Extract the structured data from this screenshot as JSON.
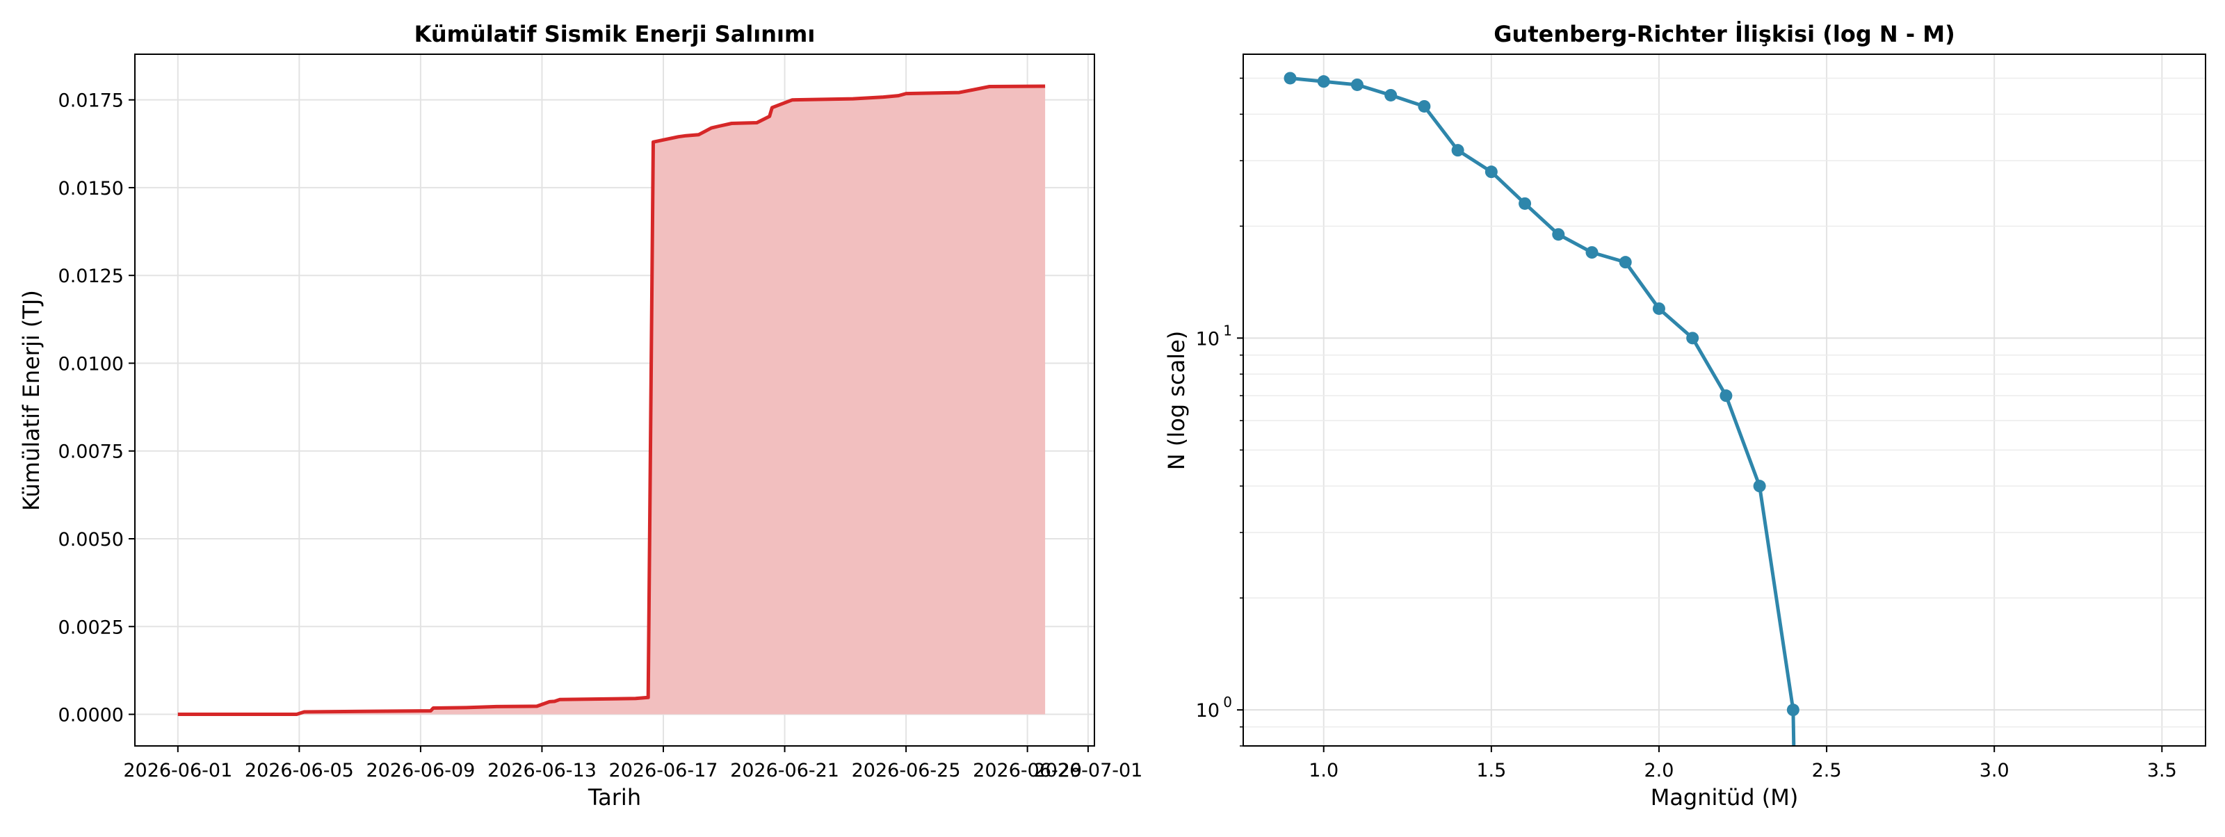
{
  "chart_data": [
    {
      "type": "area",
      "title": "Kümülatif Sismik Enerji Salınımı",
      "xlabel": "Tarih",
      "ylabel": "Kümülatif Enerji (TJ)",
      "x_type": "date",
      "x_ticks": [
        "2026-06-01",
        "2026-06-05",
        "2026-06-09",
        "2026-06-13",
        "2026-06-17",
        "2026-06-21",
        "2026-06-25",
        "2026-06-29",
        "2026-07-01"
      ],
      "xlim": [
        "2026-05-30T14:00",
        "2026-07-01T05:00"
      ],
      "ylim": [
        -0.0009,
        0.0188
      ],
      "y_ticks": [
        "0.0000",
        "0.0025",
        "0.0050",
        "0.0075",
        "0.0100",
        "0.0125",
        "0.0150",
        "0.0175"
      ],
      "grid": true,
      "colors": {
        "line": "#d62728",
        "fill": "#f2bfbf"
      },
      "series": [
        {
          "points": [
            [
              "2026-06-01T00:00",
              0.0
            ],
            [
              "2026-06-04T22:00",
              0.0
            ],
            [
              "2026-06-05T04:00",
              7e-05
            ],
            [
              "2026-06-09T08:00",
              0.0001
            ],
            [
              "2026-06-09T10:00",
              0.00018
            ],
            [
              "2026-06-10T12:00",
              0.00019
            ],
            [
              "2026-06-11T12:00",
              0.00022
            ],
            [
              "2026-06-12T20:00",
              0.00023
            ],
            [
              "2026-06-13T06:00",
              0.00036
            ],
            [
              "2026-06-13T10:00",
              0.00037
            ],
            [
              "2026-06-13T14:00",
              0.00042
            ],
            [
              "2026-06-16T02:00",
              0.00045
            ],
            [
              "2026-06-16T12:00",
              0.00048
            ],
            [
              "2026-06-16T16:00",
              0.0163
            ],
            [
              "2026-06-17T12:00",
              0.01645
            ],
            [
              "2026-06-17T18:00",
              0.01648
            ],
            [
              "2026-06-18T04:00",
              0.01651
            ],
            [
              "2026-06-18T14:00",
              0.0167
            ],
            [
              "2026-06-18T20:00",
              0.01675
            ],
            [
              "2026-06-19T06:00",
              0.01683
            ],
            [
              "2026-06-20T02:00",
              0.01685
            ],
            [
              "2026-06-20T12:00",
              0.01703
            ],
            [
              "2026-06-20T14:00",
              0.01728
            ],
            [
              "2026-06-21T06:00",
              0.0175
            ],
            [
              "2026-06-23T06:00",
              0.01753
            ],
            [
              "2026-06-24T06:00",
              0.01758
            ],
            [
              "2026-06-24T18:00",
              0.01762
            ],
            [
              "2026-06-25T00:00",
              0.01768
            ],
            [
              "2026-06-26T18:00",
              0.01771
            ],
            [
              "2026-06-27T18:00",
              0.01788
            ],
            [
              "2026-06-29T14:00",
              0.01789
            ]
          ]
        }
      ]
    },
    {
      "type": "line",
      "title": "Gutenberg-Richter İlişkisi (log N - M)",
      "xlabel": "Magnitüd (M)",
      "ylabel": "N (log scale)",
      "xlim": [
        0.76,
        3.63
      ],
      "x_ticks": [
        "1.0",
        "1.5",
        "2.0",
        "2.5",
        "3.0",
        "3.5"
      ],
      "y_scale": "log",
      "ylim": [
        0.8,
        58
      ],
      "y_tick_labels": {
        "base": "10",
        "exponents": [
          "0",
          "1"
        ]
      },
      "grid": true,
      "colors": {
        "line": "#2e86ab"
      },
      "series": [
        {
          "x": [
            0.9,
            1.0,
            1.1,
            1.2,
            1.3,
            1.4,
            1.5,
            1.6,
            1.7,
            1.8,
            1.9,
            2.0,
            2.1,
            2.2,
            2.3,
            2.4
          ],
          "y": [
            50,
            49,
            48,
            45,
            42,
            32,
            28,
            23,
            19,
            17,
            16,
            12,
            10,
            7,
            4,
            1
          ]
        }
      ]
    }
  ]
}
